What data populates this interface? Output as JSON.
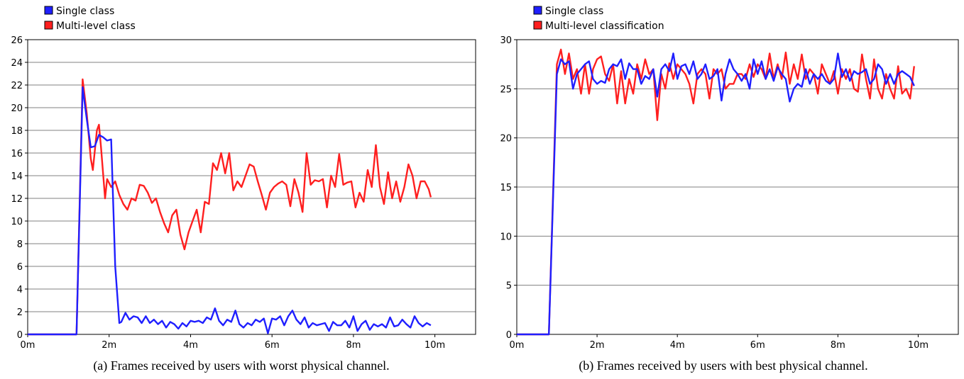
{
  "colors": {
    "series_blue": "#1f1fff",
    "series_red": "#ff1f1f",
    "grid": "#808080",
    "frame": "#000000"
  },
  "chart_data": [
    {
      "type": "line",
      "caption": "(a) Frames received by users with worst physical channel.",
      "xlim": [
        0,
        11
      ],
      "ylim": [
        0,
        26
      ],
      "xticks": [
        0,
        2,
        4,
        6,
        8,
        10
      ],
      "xtick_labels": [
        "0m",
        "2m",
        "4m",
        "6m",
        "8m",
        "10m"
      ],
      "yticks": [
        0,
        2,
        4,
        6,
        8,
        10,
        12,
        14,
        16,
        18,
        20,
        22,
        24,
        26
      ],
      "ytick_labels": [
        "0",
        "2",
        "4",
        "6",
        "8",
        "10",
        "12",
        "14",
        "16",
        "18",
        "20",
        "22",
        "24",
        "26"
      ],
      "grid": true,
      "legend": "top-left",
      "series": [
        {
          "name": "Single class",
          "color": "#1f1fff",
          "x": [
            0,
            1.2,
            1.35,
            1.45,
            1.55,
            1.65,
            1.75,
            1.85,
            1.95,
            2.05,
            2.15,
            2.25,
            2.3,
            2.4,
            2.5,
            2.6,
            2.7,
            2.8,
            2.9,
            3.0,
            3.1,
            3.2,
            3.3,
            3.4,
            3.5,
            3.6,
            3.7,
            3.8,
            3.9,
            4.0,
            4.1,
            4.2,
            4.3,
            4.4,
            4.5,
            4.6,
            4.7,
            4.8,
            4.9,
            5.0,
            5.1,
            5.2,
            5.3,
            5.4,
            5.5,
            5.6,
            5.7,
            5.8,
            5.9,
            6.0,
            6.1,
            6.2,
            6.3,
            6.4,
            6.5,
            6.6,
            6.7,
            6.8,
            6.9,
            7.0,
            7.1,
            7.2,
            7.3,
            7.4,
            7.5,
            7.6,
            7.7,
            7.8,
            7.9,
            8.0,
            8.1,
            8.2,
            8.3,
            8.4,
            8.5,
            8.6,
            8.7,
            8.8,
            8.9,
            9.0,
            9.1,
            9.2,
            9.3,
            9.4,
            9.5,
            9.6,
            9.7,
            9.8,
            9.9
          ],
          "values": [
            0,
            0,
            21.8,
            19.0,
            16.5,
            16.6,
            17.6,
            17.4,
            17.1,
            17.2,
            6.0,
            1.0,
            1.1,
            1.9,
            1.3,
            1.6,
            1.5,
            1.0,
            1.6,
            1.0,
            1.3,
            0.9,
            1.2,
            0.6,
            1.1,
            0.9,
            0.5,
            1.0,
            0.7,
            1.2,
            1.1,
            1.2,
            1.0,
            1.5,
            1.3,
            2.3,
            1.2,
            0.8,
            1.3,
            1.1,
            2.1,
            0.9,
            0.6,
            1.0,
            0.8,
            1.3,
            1.1,
            1.4,
            0.1,
            1.4,
            1.3,
            1.6,
            0.8,
            1.6,
            2.1,
            1.3,
            0.9,
            1.5,
            0.6,
            1.0,
            0.8,
            0.9,
            1.0,
            0.3,
            1.1,
            0.8,
            0.8,
            1.2,
            0.6,
            1.6,
            0.3,
            0.9,
            1.2,
            0.4,
            0.9,
            0.7,
            0.9,
            0.6,
            1.5,
            0.7,
            0.8,
            1.3,
            0.9,
            0.6,
            1.6,
            1.0,
            0.7,
            1.0,
            0.8
          ]
        },
        {
          "name": "Multi-level class",
          "color": "#ff1f1f",
          "x": [
            0,
            1.2,
            1.35,
            1.45,
            1.55,
            1.6,
            1.7,
            1.75,
            1.8,
            1.9,
            1.95,
            2.05,
            2.15,
            2.25,
            2.35,
            2.45,
            2.55,
            2.65,
            2.75,
            2.85,
            2.95,
            3.05,
            3.15,
            3.25,
            3.35,
            3.45,
            3.55,
            3.65,
            3.75,
            3.85,
            3.95,
            4.05,
            4.15,
            4.25,
            4.35,
            4.45,
            4.55,
            4.65,
            4.75,
            4.85,
            4.95,
            5.05,
            5.15,
            5.25,
            5.35,
            5.45,
            5.55,
            5.65,
            5.75,
            5.85,
            5.95,
            6.05,
            6.15,
            6.25,
            6.35,
            6.45,
            6.55,
            6.65,
            6.75,
            6.85,
            6.95,
            7.05,
            7.15,
            7.25,
            7.35,
            7.45,
            7.55,
            7.65,
            7.75,
            7.85,
            7.95,
            8.05,
            8.15,
            8.25,
            8.35,
            8.45,
            8.55,
            8.65,
            8.75,
            8.85,
            8.95,
            9.05,
            9.15,
            9.25,
            9.35,
            9.45,
            9.55,
            9.65,
            9.75,
            9.85,
            9.9
          ],
          "values": [
            0,
            0,
            22.5,
            19.5,
            15.5,
            14.5,
            18.0,
            18.5,
            16.5,
            12.0,
            13.7,
            13.0,
            13.5,
            12.3,
            11.5,
            11.0,
            12.0,
            11.8,
            13.2,
            13.1,
            12.5,
            11.6,
            12.0,
            10.8,
            9.8,
            9.0,
            10.5,
            11.0,
            8.8,
            7.5,
            9.0,
            10.0,
            11.0,
            9.0,
            11.7,
            11.5,
            15.1,
            14.5,
            16.0,
            14.2,
            16.0,
            12.7,
            13.5,
            13.0,
            14.0,
            15.0,
            14.8,
            13.5,
            12.3,
            11.0,
            12.5,
            13.0,
            13.3,
            13.5,
            13.2,
            11.3,
            13.7,
            12.5,
            10.8,
            16.0,
            13.2,
            13.6,
            13.5,
            13.7,
            11.2,
            14.0,
            13.0,
            15.9,
            13.2,
            13.4,
            13.5,
            11.2,
            12.5,
            11.7,
            14.5,
            13.0,
            16.7,
            13.0,
            11.5,
            14.3,
            12.0,
            13.5,
            11.7,
            13.0,
            15.0,
            14.0,
            12.0,
            13.5,
            13.5,
            12.8,
            12.1
          ]
        }
      ]
    },
    {
      "type": "line",
      "caption": "(b) Frames received by users with best physical channel.",
      "xlim": [
        0,
        11
      ],
      "ylim": [
        0,
        30
      ],
      "xticks": [
        0,
        2,
        4,
        6,
        8,
        10
      ],
      "xtick_labels": [
        "0m",
        "2m",
        "4m",
        "6m",
        "8m",
        "10m"
      ],
      "yticks": [
        0,
        5,
        10,
        15,
        20,
        25,
        30
      ],
      "ytick_labels": [
        "0",
        "5",
        "10",
        "15",
        "20",
        "25",
        "30"
      ],
      "grid": true,
      "legend": "top-left",
      "series": [
        {
          "name": "Single class",
          "color": "#1f1fff",
          "x": [
            0,
            0.8,
            1.0,
            1.1,
            1.2,
            1.3,
            1.4,
            1.5,
            1.6,
            1.7,
            1.8,
            1.9,
            2.0,
            2.1,
            2.2,
            2.3,
            2.4,
            2.5,
            2.6,
            2.7,
            2.8,
            2.9,
            3.0,
            3.1,
            3.2,
            3.3,
            3.4,
            3.5,
            3.6,
            3.7,
            3.8,
            3.9,
            4.0,
            4.1,
            4.2,
            4.3,
            4.4,
            4.5,
            4.6,
            4.7,
            4.8,
            4.9,
            5.0,
            5.1,
            5.2,
            5.3,
            5.4,
            5.5,
            5.6,
            5.7,
            5.8,
            5.9,
            6.0,
            6.1,
            6.2,
            6.3,
            6.4,
            6.5,
            6.6,
            6.7,
            6.8,
            6.9,
            7.0,
            7.1,
            7.2,
            7.3,
            7.4,
            7.5,
            7.6,
            7.7,
            7.8,
            7.9,
            8.0,
            8.1,
            8.2,
            8.3,
            8.4,
            8.5,
            8.6,
            8.7,
            8.8,
            8.9,
            9.0,
            9.1,
            9.2,
            9.3,
            9.4,
            9.5,
            9.6,
            9.7,
            9.8,
            9.9
          ],
          "values": [
            0,
            0,
            26.5,
            28.0,
            27.5,
            27.8,
            25.0,
            26.5,
            27.0,
            27.5,
            27.8,
            26.0,
            25.5,
            25.8,
            25.6,
            27.0,
            27.5,
            27.3,
            28.0,
            26.0,
            27.6,
            27.0,
            27.0,
            25.5,
            26.3,
            26.0,
            27.0,
            24.2,
            27.0,
            27.5,
            26.8,
            28.6,
            26.0,
            27.3,
            27.5,
            26.5,
            27.8,
            26.0,
            26.5,
            27.5,
            26.0,
            26.3,
            27.0,
            23.8,
            26.5,
            28.0,
            27.0,
            26.5,
            25.8,
            26.5,
            25.0,
            28.0,
            26.5,
            27.8,
            26.0,
            27.0,
            25.8,
            27.2,
            26.5,
            26.0,
            23.7,
            25.0,
            25.5,
            25.2,
            27.0,
            25.5,
            26.5,
            26.0,
            26.5,
            25.8,
            25.5,
            26.0,
            28.6,
            26.2,
            27.0,
            25.8,
            26.8,
            26.5,
            26.7,
            27.0,
            25.5,
            26.0,
            27.5,
            27.0,
            25.5,
            26.5,
            25.5,
            26.5,
            26.8,
            26.5,
            26.2,
            25.3
          ]
        },
        {
          "name": "Multi-level classification",
          "color": "#ff1f1f",
          "x": [
            0,
            0.8,
            1.0,
            1.1,
            1.2,
            1.3,
            1.4,
            1.5,
            1.6,
            1.7,
            1.8,
            1.9,
            2.0,
            2.1,
            2.2,
            2.3,
            2.4,
            2.5,
            2.6,
            2.7,
            2.8,
            2.9,
            3.0,
            3.1,
            3.2,
            3.3,
            3.4,
            3.5,
            3.6,
            3.7,
            3.8,
            3.9,
            4.0,
            4.1,
            4.2,
            4.3,
            4.4,
            4.5,
            4.6,
            4.7,
            4.8,
            4.9,
            5.0,
            5.1,
            5.2,
            5.3,
            5.4,
            5.5,
            5.6,
            5.7,
            5.8,
            5.9,
            6.0,
            6.1,
            6.2,
            6.3,
            6.4,
            6.5,
            6.6,
            6.7,
            6.8,
            6.9,
            7.0,
            7.1,
            7.2,
            7.3,
            7.4,
            7.5,
            7.6,
            7.7,
            7.8,
            7.9,
            8.0,
            8.1,
            8.2,
            8.3,
            8.4,
            8.5,
            8.6,
            8.7,
            8.8,
            8.9,
            9.0,
            9.1,
            9.2,
            9.3,
            9.4,
            9.5,
            9.6,
            9.7,
            9.8,
            9.9
          ],
          "values": [
            0,
            0,
            27.5,
            29.0,
            26.5,
            28.6,
            26.0,
            27.0,
            24.5,
            27.5,
            24.5,
            27.0,
            28.0,
            28.3,
            26.5,
            25.8,
            27.5,
            23.5,
            26.8,
            23.5,
            26.0,
            24.5,
            27.5,
            26.0,
            28.0,
            26.5,
            27.0,
            21.8,
            26.5,
            25.0,
            27.6,
            26.0,
            27.5,
            27.0,
            26.5,
            25.5,
            23.5,
            26.5,
            27.0,
            26.5,
            24.0,
            27.0,
            26.5,
            27.0,
            25.0,
            25.5,
            25.5,
            26.5,
            26.5,
            26.0,
            27.5,
            26.2,
            27.5,
            27.0,
            26.0,
            28.6,
            26.0,
            27.5,
            26.0,
            28.7,
            25.5,
            27.5,
            26.0,
            28.5,
            26.0,
            27.0,
            26.5,
            24.5,
            27.5,
            26.5,
            25.5,
            26.8,
            24.5,
            27.0,
            26.0,
            27.0,
            25.0,
            24.7,
            28.5,
            26.0,
            24.0,
            28.0,
            25.0,
            24.0,
            26.5,
            25.0,
            24.0,
            27.3,
            24.5,
            25.0,
            24.0,
            27.3
          ]
        }
      ]
    }
  ]
}
